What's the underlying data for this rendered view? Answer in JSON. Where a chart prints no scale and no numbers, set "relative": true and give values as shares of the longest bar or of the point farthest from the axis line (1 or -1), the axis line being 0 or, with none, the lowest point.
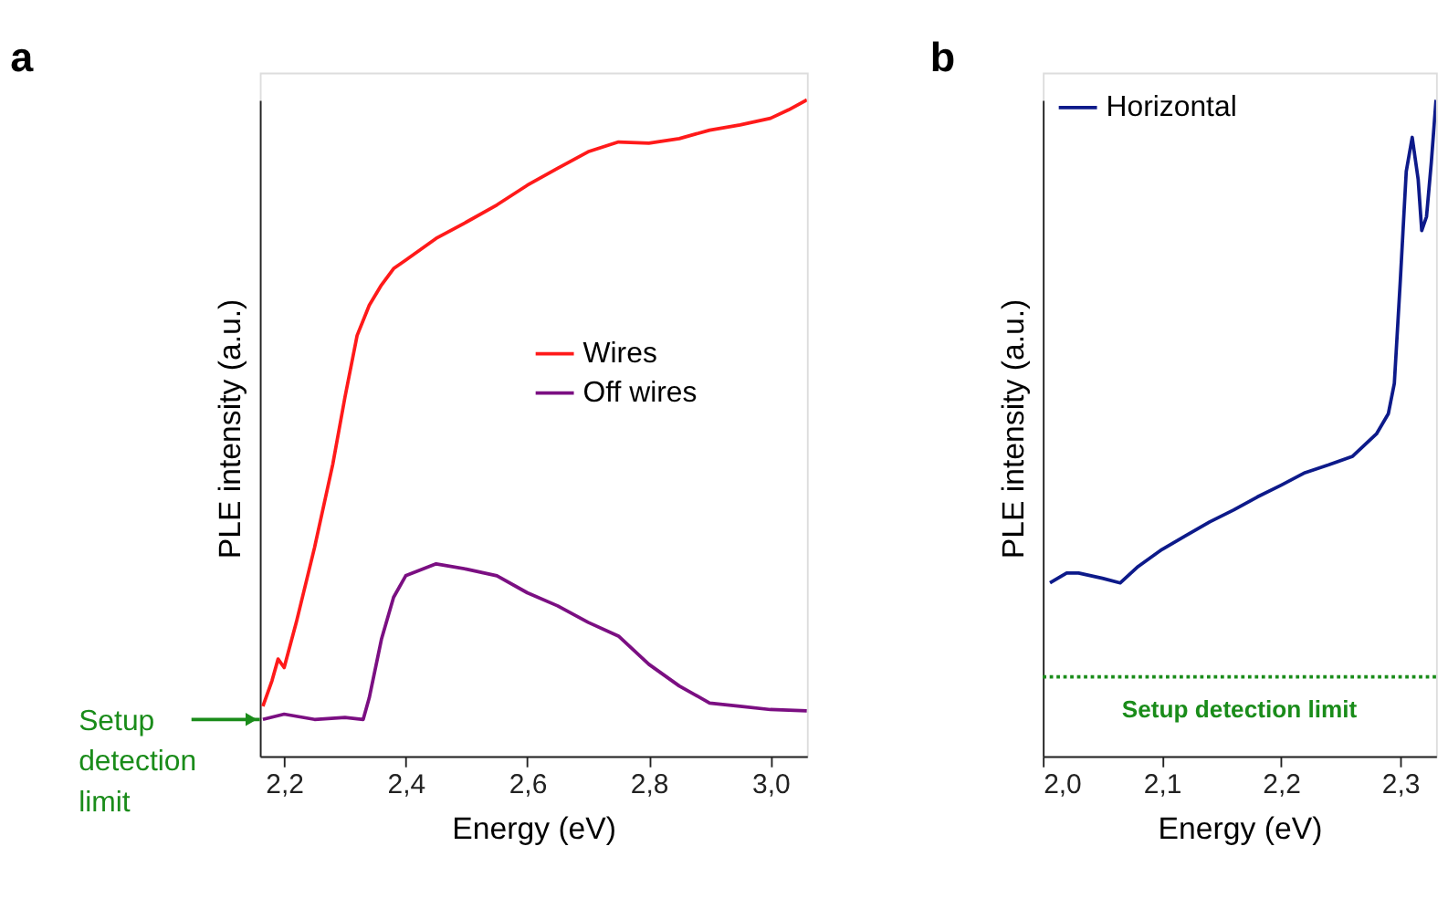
{
  "chart_data": [
    {
      "type": "line",
      "title": "a",
      "xlabel": "Energy (eV)",
      "ylabel": "PLE intensity (a.u.)",
      "relative": true,
      "tick_labels": "x",
      "grid": false,
      "legend": "right",
      "line_style": "solid",
      "xlim": [
        2.16,
        3.06
      ],
      "xticks": [
        {
          "value": 2.2,
          "label": "2,2"
        },
        {
          "value": 2.4,
          "label": "2,4"
        },
        {
          "value": 2.6,
          "label": "2,6"
        },
        {
          "value": 2.8,
          "label": "2,8"
        },
        {
          "value": 3.0,
          "label": "3,0"
        }
      ],
      "series": [
        {
          "name": "Wires",
          "color": "#ff1a1a",
          "x": [
            2.165,
            2.18,
            2.19,
            2.2,
            2.22,
            2.25,
            2.28,
            2.3,
            2.32,
            2.34,
            2.36,
            2.38,
            2.4,
            2.45,
            2.5,
            2.55,
            2.6,
            2.65,
            2.7,
            2.75,
            2.8,
            2.85,
            2.9,
            2.95,
            3.0,
            3.03,
            3.06
          ],
          "values": [
            0.076,
            0.115,
            0.148,
            0.135,
            0.204,
            0.318,
            0.445,
            0.547,
            0.641,
            0.687,
            0.718,
            0.743,
            0.756,
            0.789,
            0.814,
            0.84,
            0.87,
            0.896,
            0.921,
            0.936,
            0.934,
            0.941,
            0.954,
            0.962,
            0.972,
            0.985,
            1
          ]
        },
        {
          "name": "Off wires",
          "color": "#7b0f82",
          "x": [
            2.165,
            2.2,
            2.25,
            2.3,
            2.33,
            2.34,
            2.36,
            2.38,
            2.4,
            2.45,
            2.5,
            2.55,
            2.6,
            2.65,
            2.7,
            2.75,
            2.8,
            2.85,
            2.9,
            2.95,
            3.0,
            3.06
          ],
          "values": [
            0.056,
            0.064,
            0.056,
            0.059,
            0.056,
            0.089,
            0.178,
            0.242,
            0.275,
            0.293,
            0.285,
            0.275,
            0.249,
            0.229,
            0.204,
            0.183,
            0.14,
            0.107,
            0.081,
            0.076,
            0.071,
            0.069
          ]
        }
      ],
      "annotations": [
        {
          "text": "Setup detection limit",
          "x": 2.16,
          "y": 0.056
        }
      ]
    },
    {
      "type": "line",
      "title": "b",
      "xlabel": "Energy (eV)",
      "ylabel": "PLE intensity (a.u.)",
      "relative": true,
      "tick_labels": "x",
      "grid": false,
      "legend": "top left",
      "line_style": "solid",
      "xlim": [
        2.0,
        2.33
      ],
      "xticks": [
        {
          "value": 2.0,
          "label": "2,0"
        },
        {
          "value": 2.1,
          "label": "2,1"
        },
        {
          "value": 2.2,
          "label": "2,2"
        },
        {
          "value": 2.3,
          "label": "2,3"
        }
      ],
      "series": [
        {
          "name": "Horizontal",
          "color": "#0d1a8a",
          "x": [
            2.006,
            2.02,
            2.03,
            2.05,
            2.065,
            2.08,
            2.1,
            2.12,
            2.14,
            2.16,
            2.18,
            2.2,
            2.22,
            2.24,
            2.26,
            2.28,
            2.29,
            2.295,
            2.3,
            2.305,
            2.31,
            2.315,
            2.318,
            2.322,
            2.326,
            2.33
          ],
          "values": [
            0.264,
            0.279,
            0.279,
            0.271,
            0.264,
            0.289,
            0.315,
            0.336,
            0.357,
            0.375,
            0.395,
            0.413,
            0.432,
            0.444,
            0.457,
            0.491,
            0.522,
            0.568,
            0.724,
            0.891,
            0.943,
            0.879,
            0.801,
            0.822,
            0.904,
            1
          ]
        }
      ],
      "ref_lines": [
        {
          "axis": "y",
          "value": 0.121,
          "label": "Setup detection limit",
          "color": "#1a8c1a",
          "line_style": "dotted"
        }
      ]
    }
  ]
}
